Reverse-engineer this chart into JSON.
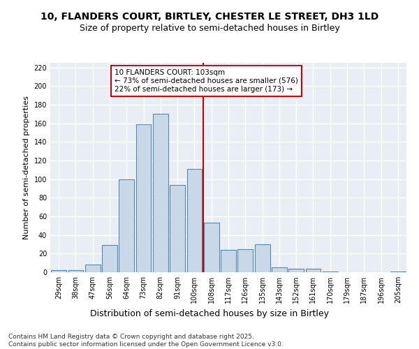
{
  "title1": "10, FLANDERS COURT, BIRTLEY, CHESTER LE STREET, DH3 1LD",
  "title2": "Size of property relative to semi-detached houses in Birtley",
  "xlabel": "Distribution of semi-detached houses by size in Birtley",
  "ylabel": "Number of semi-detached properties",
  "categories": [
    "29sqm",
    "38sqm",
    "47sqm",
    "56sqm",
    "64sqm",
    "73sqm",
    "82sqm",
    "91sqm",
    "100sqm",
    "108sqm",
    "117sqm",
    "126sqm",
    "135sqm",
    "143sqm",
    "152sqm",
    "161sqm",
    "170sqm",
    "179sqm",
    "187sqm",
    "196sqm",
    "205sqm"
  ],
  "values": [
    2,
    2,
    8,
    29,
    100,
    159,
    170,
    94,
    111,
    53,
    24,
    25,
    30,
    5,
    4,
    4,
    1,
    0,
    0,
    0,
    1
  ],
  "bar_color": "#c8d8e8",
  "bar_edge_color": "#5588aa",
  "vline_color": "#cc0000",
  "annotation_text": "10 FLANDERS COURT: 103sqm\n← 73% of semi-detached houses are smaller (576)\n22% of semi-detached houses are larger (173) →",
  "annotation_box_color": "#ffffff",
  "annotation_box_edge": "#cc0000",
  "ylim": [
    0,
    225
  ],
  "yticks": [
    0,
    20,
    40,
    60,
    80,
    100,
    120,
    140,
    160,
    180,
    200,
    220
  ],
  "bg_color": "#e8eef4",
  "grid_color": "#ffffff",
  "footer": "Contains HM Land Registry data © Crown copyright and database right 2025.\nContains public sector information licensed under the Open Government Licence v3.0.",
  "title_fontsize": 10,
  "subtitle_fontsize": 9,
  "xlabel_fontsize": 9,
  "ylabel_fontsize": 8,
  "tick_fontsize": 7,
  "footer_fontsize": 6.5,
  "ann_fontsize": 7.5
}
